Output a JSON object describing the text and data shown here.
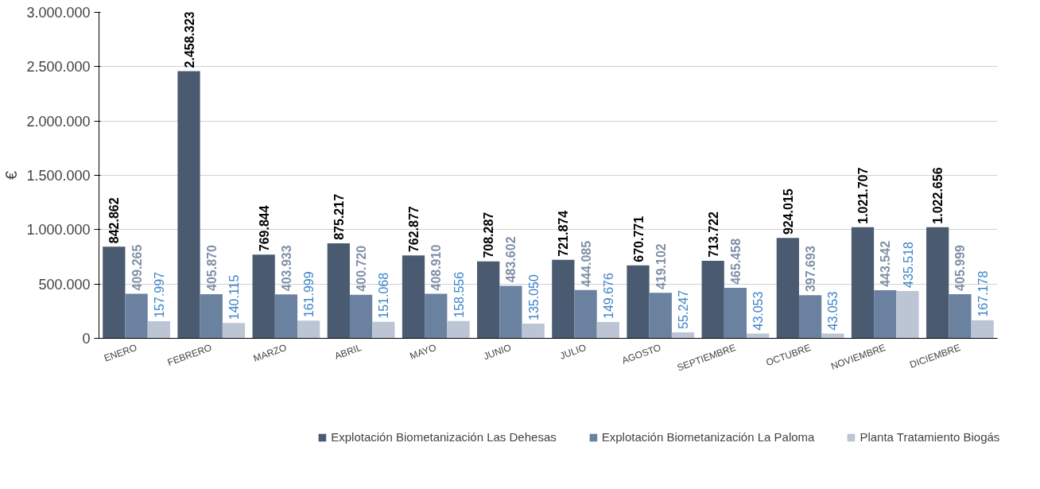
{
  "chart_data": {
    "type": "bar",
    "ylabel": "€",
    "categories": [
      "ENERO",
      "FEBRERO",
      "MARZO",
      "ABRIL",
      "MAYO",
      "JUNIO",
      "JULIO",
      "AGOSTO",
      "SEPTIEMBRE",
      "OCTUBRE",
      "NOVIEMBRE",
      "DICIEMBRE"
    ],
    "series": [
      {
        "name": "Explotación Biometanización Las Dehesas",
        "color": "#4a5a70",
        "values": [
          842862,
          2458323,
          769844,
          875217,
          762877,
          708287,
          721874,
          670771,
          713722,
          924015,
          1021707,
          1022656
        ],
        "value_labels": [
          "842.862",
          "2.458.323",
          "769.844",
          "875.217",
          "762.877",
          "708.287",
          "721.874",
          "670.771",
          "713.722",
          "924.015",
          "1.021.707",
          "1.022.656"
        ]
      },
      {
        "name": "Explotación Biometanización La Paloma",
        "color": "#6a819f",
        "values": [
          409265,
          405870,
          403933,
          400720,
          408910,
          483602,
          444085,
          419102,
          465458,
          397693,
          443542,
          405999
        ],
        "value_labels": [
          "409.265",
          "405.870",
          "403.933",
          "400.720",
          "408.910",
          "483.602",
          "444.085",
          "419.102",
          "465.458",
          "397.693",
          "443.542",
          "405.999"
        ]
      },
      {
        "name": "Planta Tratamiento Biogás",
        "color": "#bcc5d3",
        "values": [
          157997,
          140115,
          161999,
          151068,
          158556,
          135050,
          149676,
          55247,
          43053,
          43053,
          435518,
          167178
        ],
        "value_labels": [
          "157.997",
          "140.115",
          "161.999",
          "151.068",
          "158.556",
          "135.050",
          "149.676",
          "55.247",
          "43.053",
          "43.053",
          "435.518",
          "167.178"
        ]
      }
    ],
    "ylim": [
      0,
      3000000
    ],
    "yticks": [
      {
        "value": 0,
        "label": "0"
      },
      {
        "value": 500000,
        "label": "500.000"
      },
      {
        "value": 1000000,
        "label": "1.000.000"
      },
      {
        "value": 1500000,
        "label": "1.500.000"
      },
      {
        "value": 2000000,
        "label": "2.000.000"
      },
      {
        "value": 2500000,
        "label": "2.500.000"
      },
      {
        "value": 3000000,
        "label": "3.000.000"
      }
    ],
    "grid": "y",
    "legend": "bottom"
  }
}
